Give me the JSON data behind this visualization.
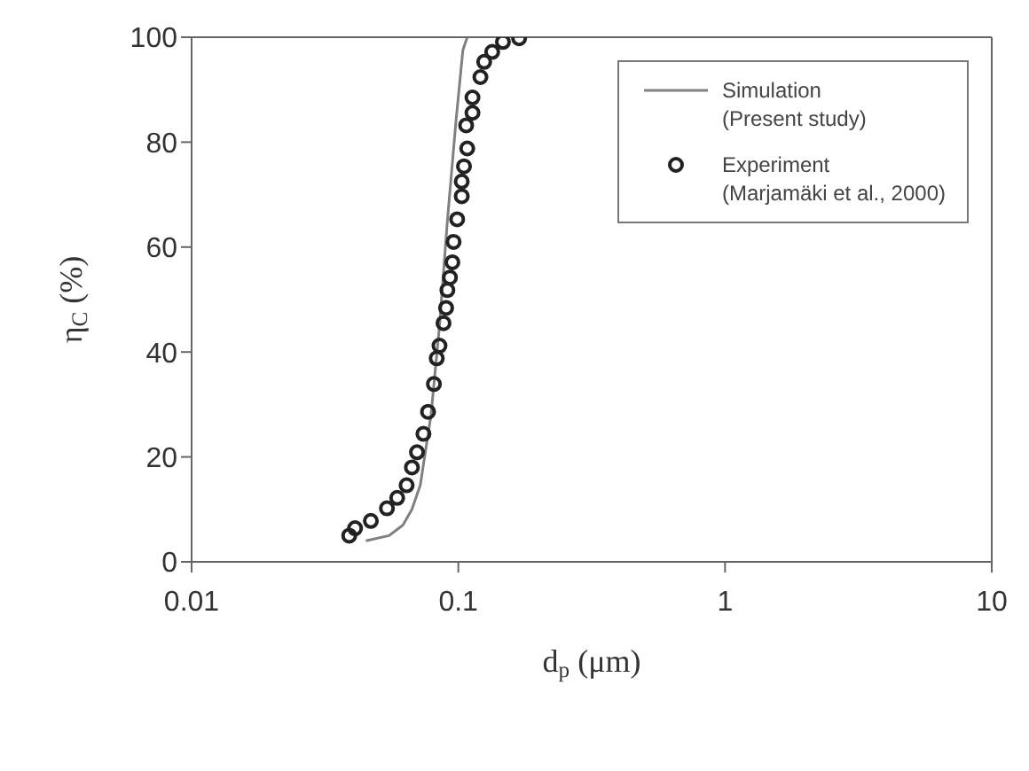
{
  "chart_data": {
    "type": "scatter",
    "xlabel": "d$_{p}$ (μm)",
    "ylabel": "η$_{C}$ (%)",
    "log": "x",
    "xlim": [
      0.01,
      10
    ],
    "xticks": [
      0.01,
      0.1,
      1,
      10
    ],
    "ylim": [
      0,
      100
    ],
    "yticks": [
      0,
      20,
      40,
      60,
      80,
      100
    ],
    "grid": false,
    "legend": "top right",
    "series": [
      {
        "name": "Simulation\n(Present study)",
        "type": "line",
        "color": "#808080",
        "marker": "none",
        "line_style": "solid",
        "x": [
          0.045,
          0.055,
          0.062,
          0.067,
          0.072,
          0.079,
          0.085,
          0.091,
          0.098,
          0.104,
          0.108
        ],
        "values": [
          4,
          5,
          7,
          10,
          14.6,
          28,
          45,
          65,
          84,
          97.5,
          100
        ]
      },
      {
        "name": "Experiment\n(Marjamäki et al., 2000)",
        "color": "#222222",
        "marker": "circle",
        "x": [
          0.039,
          0.041,
          0.047,
          0.054,
          0.059,
          0.064,
          0.067,
          0.07,
          0.074,
          0.077,
          0.081,
          0.083,
          0.085,
          0.088,
          0.09,
          0.091,
          0.093,
          0.095,
          0.096,
          0.099,
          0.103,
          0.103,
          0.105,
          0.108,
          0.107,
          0.113,
          0.113,
          0.121,
          0.125,
          0.134,
          0.147,
          0.169
        ],
        "values": [
          5,
          6.4,
          7.8,
          10.2,
          12.2,
          14.6,
          18,
          20.9,
          24.4,
          28.6,
          33.9,
          38.8,
          41.2,
          45.5,
          48.4,
          51.8,
          54.2,
          57.1,
          61,
          65.3,
          69.7,
          72.5,
          75.4,
          78.8,
          83.2,
          85.6,
          88.5,
          92.4,
          95.3,
          97.2,
          99.1,
          99.8
        ]
      }
    ]
  }
}
